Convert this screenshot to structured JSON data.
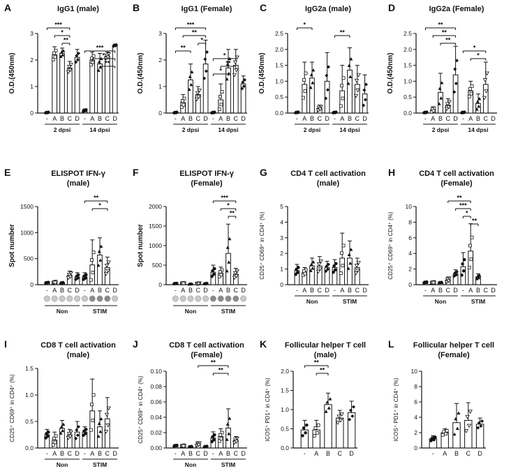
{
  "figure_title": "Antibody and T cell responses figure",
  "chart_data": [
    {
      "id": "A",
      "type": "bar",
      "title": "IgG1 (male)",
      "ylabel": "O.D.(450nm)",
      "ylim": [
        0,
        3
      ],
      "yticks": [
        0,
        1,
        2,
        3
      ],
      "tick_labels": [
        "0",
        "1",
        "2",
        "3"
      ],
      "categories": [
        "-",
        "A",
        "B",
        "C",
        "D",
        "-",
        "A",
        "B",
        "C",
        "D"
      ],
      "groups": [
        "2 dpsi",
        "14 dpsi"
      ],
      "values": [
        0.02,
        2.2,
        2.25,
        1.7,
        2.1,
        0.1,
        2.0,
        1.85,
        2.15,
        2.55
      ],
      "errors": [
        0.02,
        0.3,
        0.2,
        0.25,
        0.3,
        0.05,
        0.3,
        0.4,
        0.15,
        0.05
      ],
      "sig": [
        {
          "a": 0,
          "b": 3,
          "l": "***"
        },
        {
          "a": 1,
          "b": 3,
          "l": "*"
        },
        {
          "a": 2,
          "b": 3,
          "l": "**"
        },
        {
          "a": 5,
          "b": 9,
          "l": "***"
        },
        {
          "a": 6,
          "b": 9,
          "l": "*"
        },
        {
          "a": 7,
          "b": 9,
          "l": "**"
        }
      ]
    },
    {
      "id": "B",
      "type": "bar",
      "title": "IgG1 (Female)",
      "ylabel": "O.D.(450nm)",
      "ylim": [
        0,
        3
      ],
      "yticks": [
        0,
        1,
        2,
        3
      ],
      "tick_labels": [
        "0",
        "1",
        "2",
        "3"
      ],
      "categories": [
        "-",
        "A",
        "B",
        "C",
        "D",
        "-",
        "A",
        "B",
        "C",
        "D"
      ],
      "groups": [
        "2 dpsi",
        "14 dpsi"
      ],
      "values": [
        0.02,
        0.4,
        1.25,
        0.7,
        1.85,
        0.02,
        0.5,
        1.7,
        1.8,
        1.1
      ],
      "errors": [
        0.02,
        0.3,
        0.6,
        0.3,
        0.9,
        0.02,
        0.6,
        0.7,
        0.6,
        0.3
      ],
      "sig": [
        {
          "a": 0,
          "b": 4,
          "l": "***"
        },
        {
          "a": 1,
          "b": 4,
          "l": "**"
        },
        {
          "a": 3,
          "b": 4,
          "l": "*"
        },
        {
          "a": 0,
          "b": 2,
          "l": "**"
        },
        {
          "a": 5,
          "b": 8,
          "l": "*"
        },
        {
          "a": 6,
          "b": 8,
          "l": "**"
        },
        {
          "a": 5,
          "b": 7,
          "l": "*"
        }
      ]
    },
    {
      "id": "C",
      "type": "bar",
      "title": "IgG2a (male)",
      "ylabel": "O.D.(450nm)",
      "ylim": [
        0,
        2.5
      ],
      "yticks": [
        0,
        0.5,
        1,
        1.5,
        2,
        2.5
      ],
      "tick_labels": [
        "0.0",
        "0.5",
        "1.0",
        "1.5",
        "2.0",
        "2.5"
      ],
      "categories": [
        "-",
        "A",
        "B",
        "C",
        "D",
        "-",
        "A",
        "B",
        "C",
        "D"
      ],
      "groups": [
        "2 dpsi",
        "14 dpsi"
      ],
      "values": [
        0.02,
        0.9,
        1.1,
        0.15,
        1.0,
        0.02,
        0.7,
        1.35,
        0.9,
        0.6
      ],
      "errors": [
        0.02,
        0.7,
        0.5,
        0.1,
        0.9,
        0.02,
        0.8,
        0.7,
        0.6,
        0.6
      ],
      "sig": [
        {
          "a": 0,
          "b": 2,
          "l": "*"
        },
        {
          "a": 5,
          "b": 7,
          "l": "**"
        }
      ]
    },
    {
      "id": "D",
      "type": "bar",
      "title": "IgG2a (Female)",
      "ylabel": "O.D.(450nm)",
      "ylim": [
        0,
        2.5
      ],
      "yticks": [
        0,
        0.5,
        1,
        1.5,
        2,
        2.5
      ],
      "tick_labels": [
        "0.0",
        "0.5",
        "1.0",
        "1.5",
        "2.0",
        "2.5"
      ],
      "categories": [
        "-",
        "A",
        "B",
        "C",
        "D",
        "-",
        "A",
        "B",
        "C",
        "D"
      ],
      "groups": [
        "2 dpsi",
        "14 dpsi"
      ],
      "values": [
        0.02,
        0.1,
        0.65,
        0.25,
        1.2,
        0.02,
        0.7,
        0.3,
        0.9,
        0.0
      ],
      "errors": [
        0.02,
        0.1,
        0.6,
        0.2,
        0.9,
        0.02,
        0.3,
        0.3,
        0.7,
        0.0
      ],
      "sig": [
        {
          "a": 0,
          "b": 4,
          "l": "**"
        },
        {
          "a": 1,
          "b": 4,
          "l": "**"
        },
        {
          "a": 2,
          "b": 4,
          "l": "**"
        },
        {
          "a": 5,
          "b": 8,
          "l": "*"
        },
        {
          "a": 6,
          "b": 8,
          "l": "*"
        }
      ]
    },
    {
      "id": "E",
      "type": "bar",
      "title": "ELISPOT IFN-γ",
      "subtitle": "(male)",
      "ylabel": "Spot number",
      "ylim": [
        0,
        1500
      ],
      "yticks": [
        0,
        500,
        1000,
        1500
      ],
      "tick_labels": [
        "0",
        "500",
        "1000",
        "1500"
      ],
      "categories": [
        "-",
        "A",
        "B",
        "C",
        "D",
        "-",
        "A",
        "B",
        "C",
        "D"
      ],
      "groups": [
        "Non",
        "STIM"
      ],
      "wells": true,
      "values": [
        40,
        50,
        40,
        180,
        150,
        150,
        380,
        570,
        330,
        0
      ],
      "errors": [
        10,
        20,
        15,
        80,
        80,
        80,
        480,
        330,
        200,
        0
      ],
      "sig": [
        {
          "a": 5,
          "b": 8,
          "l": "**"
        },
        {
          "a": 6,
          "b": 8,
          "l": "*"
        }
      ]
    },
    {
      "id": "F",
      "type": "bar",
      "title": "ELISPOT IFN-γ",
      "subtitle": "(Female)",
      "ylabel": "Spot number",
      "ylim": [
        0,
        2000
      ],
      "yticks": [
        0,
        500,
        1000,
        1500,
        2000
      ],
      "tick_labels": [
        "0",
        "500",
        "1000",
        "1500",
        "2000"
      ],
      "categories": [
        "-",
        "A",
        "B",
        "C",
        "D",
        "-",
        "A",
        "B",
        "C",
        "D"
      ],
      "groups": [
        "Non",
        "STIM"
      ],
      "wells": true,
      "values": [
        30,
        40,
        20,
        30,
        30,
        320,
        300,
        800,
        270,
        0
      ],
      "errors": [
        10,
        15,
        10,
        15,
        15,
        180,
        150,
        750,
        150,
        0
      ],
      "sig": [
        {
          "a": 5,
          "b": 8,
          "l": "***"
        },
        {
          "a": 6,
          "b": 8,
          "l": "*"
        },
        {
          "a": 7,
          "b": 8,
          "l": "**"
        }
      ]
    },
    {
      "id": "G",
      "type": "bar",
      "title": "CD4 T cell activation",
      "subtitle": "(male)",
      "ylabel": "CD25⁺ CD69⁺ in CD4⁺ (%)",
      "ylim": [
        0,
        5
      ],
      "yticks": [
        0,
        1,
        2,
        3,
        4,
        5
      ],
      "tick_labels": [
        "0",
        "1",
        "2",
        "3",
        "4",
        "5"
      ],
      "categories": [
        "-",
        "A",
        "B",
        "C",
        "D",
        "-",
        "A",
        "B",
        "C",
        "D"
      ],
      "groups": [
        "Non",
        "STIM"
      ],
      "values": [
        0.9,
        0.8,
        1.2,
        1.2,
        1.1,
        1.1,
        1.7,
        1.7,
        1.1,
        0
      ],
      "errors": [
        0.4,
        0.3,
        0.5,
        0.6,
        0.4,
        0.5,
        1.6,
        1.1,
        0.6,
        0
      ],
      "sig": []
    },
    {
      "id": "H",
      "type": "bar",
      "title": "CD4 T cell activation",
      "subtitle": "(Female)",
      "ylabel": "CD25⁺ CD69⁺ in CD4⁺ (%)",
      "ylim": [
        0,
        10
      ],
      "yticks": [
        0,
        2,
        4,
        6,
        8,
        10
      ],
      "tick_labels": [
        "0",
        "2",
        "4",
        "6",
        "8",
        "10"
      ],
      "categories": [
        "-",
        "A",
        "B",
        "C",
        "D",
        "-",
        "A",
        "B",
        "C",
        "D"
      ],
      "groups": [
        "Non",
        "STIM"
      ],
      "values": [
        0.3,
        0.3,
        0.3,
        0.6,
        1.4,
        2.3,
        4.3,
        1.0,
        0,
        0
      ],
      "errors": [
        0.1,
        0.1,
        0.1,
        0.4,
        0.5,
        1.8,
        3.5,
        0.4,
        0,
        0
      ],
      "sig": [
        {
          "a": 3,
          "b": 6,
          "l": "**"
        },
        {
          "a": 4,
          "b": 6,
          "l": "***"
        },
        {
          "a": 5,
          "b": 6,
          "l": "*"
        },
        {
          "a": 6,
          "b": 7,
          "l": "**"
        }
      ]
    },
    {
      "id": "I",
      "type": "bar",
      "title": "CD8 T cell activation",
      "subtitle": "(male)",
      "ylabel": "CD25⁺ CD69⁺ in CD4⁺ (%)",
      "ylim": [
        0,
        1.5
      ],
      "yticks": [
        0,
        0.5,
        1,
        1.5
      ],
      "tick_labels": [
        "0.0",
        "0.5",
        "1.0",
        "1.5"
      ],
      "categories": [
        "-",
        "A",
        "B",
        "C",
        "D",
        "-",
        "A",
        "B",
        "C",
        "D"
      ],
      "groups": [
        "Non",
        "STIM"
      ],
      "values": [
        0.25,
        0.15,
        0.37,
        0.25,
        0.3,
        0.3,
        0.7,
        0.4,
        0.55,
        0
      ],
      "errors": [
        0.1,
        0.15,
        0.15,
        0.1,
        0.2,
        0.1,
        0.6,
        0.3,
        0.4,
        0
      ],
      "sig": []
    },
    {
      "id": "J",
      "type": "bar",
      "title": "CD8 T cell activation",
      "subtitle": "(Female)",
      "ylabel": "CD25⁺ CD69⁺ in CD4⁺ (%)",
      "ylim": [
        0,
        0.1
      ],
      "yticks": [
        0,
        0.02,
        0.04,
        0.06,
        0.08,
        0.1
      ],
      "tick_labels": [
        "0.00",
        "0.02",
        "0.04",
        "0.06",
        "0.08",
        "0.10"
      ],
      "categories": [
        "-",
        "A",
        "B",
        "C",
        "D",
        "-",
        "A",
        "B",
        "C",
        "D"
      ],
      "groups": [
        "Non",
        "STIM"
      ],
      "values": [
        0.003,
        0.003,
        0.002,
        0.005,
        0.002,
        0.013,
        0.015,
        0.026,
        0.01,
        0
      ],
      "errors": [
        0.001,
        0.001,
        0.001,
        0.003,
        0.001,
        0.008,
        0.01,
        0.025,
        0.005,
        0
      ],
      "sig": [
        {
          "a": 3,
          "b": 7,
          "l": "**"
        },
        {
          "a": 5,
          "b": 7,
          "l": "**"
        }
      ]
    },
    {
      "id": "K",
      "type": "bar",
      "title": "Follicular helper T cell",
      "subtitle": "(male)",
      "ylabel": "ICOS⁺ PD1⁺ in CD4⁺ (%)",
      "ylim": [
        0,
        2
      ],
      "yticks": [
        0,
        0.5,
        1,
        1.5,
        2
      ],
      "tick_labels": [
        "0.0",
        "0.5",
        "1.0",
        "1.5",
        "2.0"
      ],
      "categories": [
        "-",
        "A",
        "B",
        "C",
        "D"
      ],
      "groups": [],
      "values": [
        0.47,
        0.47,
        1.13,
        0.78,
        0.92
      ],
      "errors": [
        0.25,
        0.25,
        0.3,
        0.2,
        0.3
      ],
      "sig": [
        {
          "a": 0,
          "b": 2,
          "l": "**"
        },
        {
          "a": 1,
          "b": 2,
          "l": "**"
        }
      ]
    },
    {
      "id": "L",
      "type": "bar",
      "title": "Follicular helper T cell",
      "subtitle": "(Female)",
      "ylabel": "ICOS⁺ PD1⁺ in CD4⁺ (%)",
      "ylim": [
        0,
        10
      ],
      "yticks": [
        0,
        2,
        4,
        6,
        8,
        10
      ],
      "tick_labels": [
        "0",
        "2",
        "4",
        "6",
        "8",
        "10"
      ],
      "categories": [
        "-",
        "A",
        "B",
        "C",
        "D"
      ],
      "groups": [],
      "values": [
        1.2,
        2.0,
        3.3,
        3.6,
        3.1
      ],
      "errors": [
        0.4,
        0.5,
        2.5,
        2.3,
        0.8
      ],
      "sig": []
    }
  ]
}
